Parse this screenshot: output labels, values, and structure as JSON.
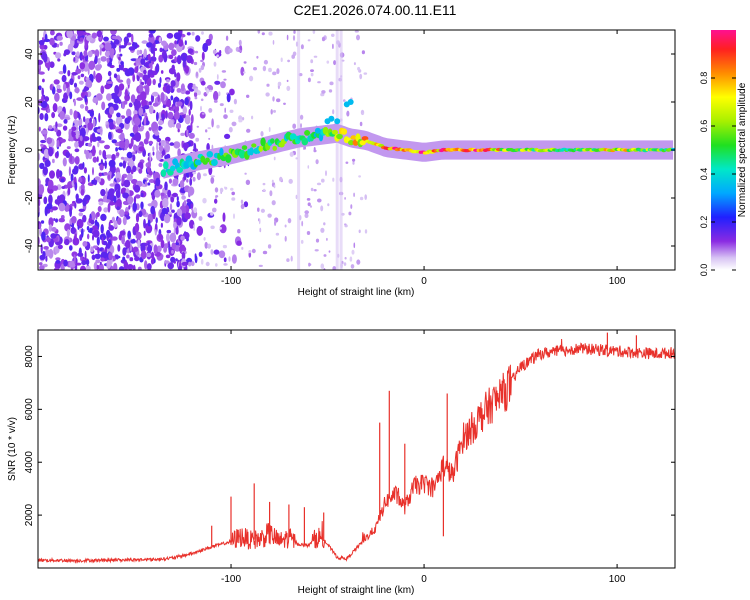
{
  "title": "C2E1.2026.074.00.11.E11",
  "chart_data": [
    {
      "type": "heatmap",
      "name": "spectrogram",
      "xlabel": "Height of straight line (km)",
      "ylabel": "Frequency (Hz)",
      "xlim": [
        -200,
        130
      ],
      "ylim": [
        -50,
        50
      ],
      "xticks": [
        -100,
        0,
        100
      ],
      "yticks": [
        -40,
        -20,
        0,
        20,
        40
      ],
      "xtick_labels": [
        "-100",
        "0",
        "100"
      ],
      "ytick_labels": [
        "-40",
        "-20",
        "0",
        "20",
        "40"
      ],
      "ridge": {
        "description_points_x": [
          -135,
          -120,
          -100,
          -80,
          -65,
          -55,
          -45,
          -38,
          -30,
          -20,
          -10,
          0,
          10,
          20,
          50,
          80,
          100,
          130
        ],
        "frequency_hz": [
          -8,
          -5,
          -2,
          2,
          5,
          6,
          7,
          5,
          4,
          1,
          0,
          -1,
          0,
          0,
          0,
          0,
          0,
          0
        ],
        "normalized_amplitude": [
          0.4,
          0.45,
          0.5,
          0.55,
          0.5,
          0.45,
          0.6,
          0.8,
          0.75,
          0.9,
          0.95,
          0.85,
          0.9,
          0.95,
          0.6,
          0.55,
          0.75,
          0.5
        ]
      },
      "colorbar": {
        "label": "Normalized spectral amplitude",
        "range": [
          0,
          1
        ],
        "ticks": [
          0.0,
          0.2,
          0.4,
          0.6,
          0.8
        ],
        "tick_labels": [
          "0.0",
          "0.2",
          "0.4",
          "0.6",
          "0.8"
        ]
      }
    },
    {
      "type": "line",
      "name": "snr",
      "xlabel": "Height of straight line (km)",
      "ylabel": "SNR (10 * v/v)",
      "xlim": [
        -200,
        130
      ],
      "ylim": [
        0,
        9000
      ],
      "xticks": [
        -100,
        0,
        100
      ],
      "yticks": [
        2000,
        4000,
        6000,
        8000
      ],
      "xtick_labels": [
        "-100",
        "0",
        "100"
      ],
      "ytick_labels": [
        "2000",
        "4000",
        "6000",
        "8000"
      ],
      "series": [
        {
          "name": "SNR",
          "color": "#e8312b",
          "x": [
            -200,
            -180,
            -160,
            -140,
            -130,
            -120,
            -110,
            -100,
            -95,
            -90,
            -85,
            -80,
            -75,
            -70,
            -65,
            -60,
            -55,
            -50,
            -45,
            -40,
            -35,
            -30,
            -25,
            -20,
            -15,
            -10,
            -5,
            0,
            5,
            10,
            15,
            20,
            25,
            30,
            35,
            40,
            45,
            50,
            60,
            70,
            80,
            90,
            100,
            110,
            120,
            130
          ],
          "y": [
            300,
            280,
            300,
            320,
            380,
            550,
            800,
            1000,
            1200,
            1050,
            1100,
            1300,
            1000,
            1150,
            900,
            850,
            1200,
            900,
            400,
            350,
            750,
            1150,
            1500,
            2500,
            2800,
            2300,
            3100,
            3200,
            3000,
            3900,
            3500,
            4900,
            5300,
            5800,
            6200,
            6500,
            7000,
            7600,
            8100,
            8200,
            8300,
            8250,
            8200,
            8150,
            8100,
            8150
          ],
          "spikes": [
            {
              "x": -110,
              "y": 1600
            },
            {
              "x": -100,
              "y": 2700
            },
            {
              "x": -88,
              "y": 3200
            },
            {
              "x": -80,
              "y": 2500
            },
            {
              "x": -70,
              "y": 2400
            },
            {
              "x": -62,
              "y": 2300
            },
            {
              "x": -52,
              "y": 2100
            },
            {
              "x": -23,
              "y": 5500
            },
            {
              "x": -18,
              "y": 6700
            },
            {
              "x": -10,
              "y": 4700
            },
            {
              "x": 12,
              "y": 6600
            },
            {
              "x": 10,
              "y": 1200
            },
            {
              "x": 95,
              "y": 8900
            },
            {
              "x": 110,
              "y": 8800
            }
          ]
        }
      ]
    }
  ]
}
